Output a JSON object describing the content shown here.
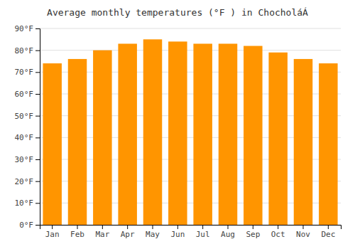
{
  "chart_data": {
    "type": "bar",
    "title": "Average monthly temperatures (°F ) in ChocholáÁ",
    "categories": [
      "Jan",
      "Feb",
      "Mar",
      "Apr",
      "May",
      "Jun",
      "Jul",
      "Aug",
      "Sep",
      "Oct",
      "Nov",
      "Dec"
    ],
    "values": [
      74,
      76,
      80,
      83,
      85,
      84,
      83,
      83,
      82,
      79,
      76,
      74
    ],
    "color": "#FF9500",
    "ylim": [
      0,
      90
    ],
    "yticks": [
      {
        "value": 0,
        "label": "0°F"
      },
      {
        "value": 10,
        "label": "10°F"
      },
      {
        "value": 20,
        "label": "20°F"
      },
      {
        "value": 30,
        "label": "30°F"
      },
      {
        "value": 40,
        "label": "40°F"
      },
      {
        "value": 50,
        "label": "50°F"
      },
      {
        "value": 60,
        "label": "60°F"
      },
      {
        "value": 70,
        "label": "70°F"
      },
      {
        "value": 80,
        "label": "80°F"
      },
      {
        "value": 90,
        "label": "90°F"
      }
    ],
    "grid": true
  }
}
